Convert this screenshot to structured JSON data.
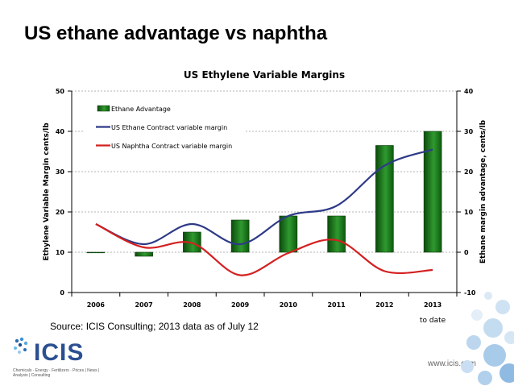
{
  "slide": {
    "title": "US ethane advantage vs naphtha",
    "source": "Source: ICIS Consulting; 2013 data as of July 12",
    "website": "www.icis.com",
    "logo_text": "ICIS",
    "logo_tagline": "Chemicals · Energy · Fertilizers · Prices | News | Analysis | Consulting"
  },
  "chart_data": {
    "type": "bar",
    "title": "US Ethylene Variable Margins",
    "ylabel": "Ethylene Variable Margin cents/lb",
    "y2label": "Ethane margin advantage, cents/lb",
    "categories": [
      "2006",
      "2007",
      "2008",
      "2009",
      "2010",
      "2011",
      "2012",
      "2013"
    ],
    "category_note": "to date",
    "ylim": [
      0,
      50
    ],
    "y_ticks": [
      "0",
      "10",
      "20",
      "30",
      "40",
      "50"
    ],
    "y2lim": [
      -10,
      40
    ],
    "y2_ticks": [
      "-10",
      "0",
      "10",
      "20",
      "30",
      "40"
    ],
    "grid": true,
    "legend_position": "top-left",
    "series": [
      {
        "name": "Ethane Advantage",
        "type": "bar",
        "axis": "right",
        "color": "#1e7a1e",
        "values": [
          0,
          -1,
          5,
          8,
          9,
          9,
          26.5,
          30
        ]
      },
      {
        "name": "US Ethane Contract variable margin",
        "type": "line",
        "axis": "left",
        "color": "#2e3a87",
        "values": [
          17,
          12,
          17,
          12,
          19,
          21.5,
          31.5,
          35.5
        ]
      },
      {
        "name": "US Naphtha Contract variable margin",
        "type": "line",
        "axis": "left",
        "color": "#d42020",
        "values": [
          17,
          11.2,
          12.3,
          4.3,
          9.8,
          13,
          5.3,
          5.6
        ]
      }
    ]
  }
}
